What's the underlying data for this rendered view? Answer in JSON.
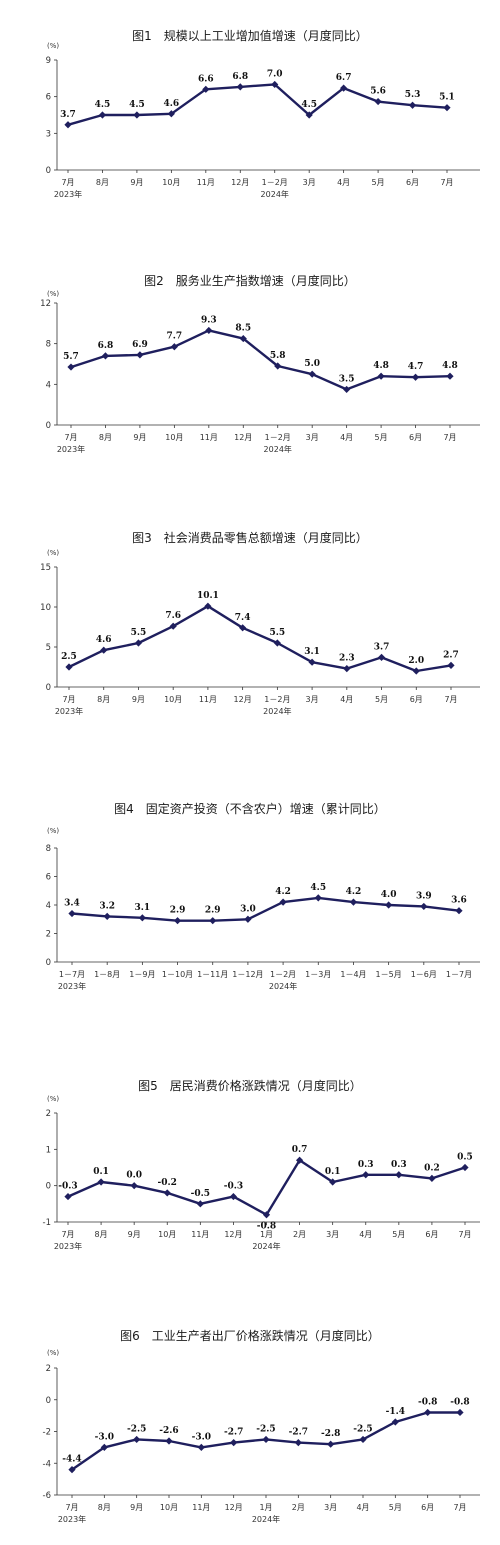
{
  "chart_data": [
    {
      "type": "line",
      "title": "图1　规模以上工业增加值增速（月度同比）",
      "unit": "(%)",
      "ylim": [
        0,
        9
      ],
      "yticks": [
        0,
        3,
        6,
        9
      ],
      "categories": [
        "7月",
        "8月",
        "9月",
        "10月",
        "11月",
        "12月",
        "1－2月",
        "3月",
        "4月",
        "5月",
        "6月",
        "7月"
      ],
      "year_labels": [
        {
          "at": 0,
          "text": "2023年"
        },
        {
          "at": 6,
          "text": "2024年"
        }
      ],
      "values": [
        3.7,
        4.5,
        4.5,
        4.6,
        6.6,
        6.8,
        7.0,
        4.5,
        6.7,
        5.6,
        5.3,
        5.1
      ],
      "labels": [
        "3.7",
        "4.5",
        "4.5",
        "4.6",
        "6.6",
        "6.8",
        "7.0",
        "4.5",
        "6.7",
        "5.6",
        "5.3",
        "5.1"
      ]
    },
    {
      "type": "line",
      "title": "图2　服务业生产指数增速（月度同比）",
      "unit": "(%)",
      "ylim": [
        0,
        12
      ],
      "yticks": [
        0,
        4,
        8,
        12
      ],
      "categories": [
        "7月",
        "8月",
        "9月",
        "10月",
        "11月",
        "12月",
        "1－2月",
        "3月",
        "4月",
        "5月",
        "6月",
        "7月"
      ],
      "year_labels": [
        {
          "at": 0,
          "text": "2023年"
        },
        {
          "at": 6,
          "text": "2024年"
        }
      ],
      "values": [
        5.7,
        6.8,
        6.9,
        7.7,
        9.3,
        8.5,
        5.8,
        5.0,
        3.5,
        4.8,
        4.7,
        4.8
      ],
      "labels": [
        "5.7",
        "6.8",
        "6.9",
        "7.7",
        "9.3",
        "8.5",
        "5.8",
        "5.0",
        "3.5",
        "4.8",
        "4.7",
        "4.8"
      ]
    },
    {
      "type": "line",
      "title": "图3　社会消费品零售总额增速（月度同比）",
      "unit": "(%)",
      "ylim": [
        0,
        15
      ],
      "yticks": [
        0,
        5,
        10,
        15
      ],
      "categories": [
        "7月",
        "8月",
        "9月",
        "10月",
        "11月",
        "12月",
        "1－2月",
        "3月",
        "4月",
        "5月",
        "6月",
        "7月"
      ],
      "year_labels": [
        {
          "at": 0,
          "text": "2023年"
        },
        {
          "at": 6,
          "text": "2024年"
        }
      ],
      "values": [
        2.5,
        4.6,
        5.5,
        7.6,
        10.1,
        7.4,
        5.5,
        3.1,
        2.3,
        3.7,
        2.0,
        2.7
      ],
      "labels": [
        "2.5",
        "4.6",
        "5.5",
        "7.6",
        "10.1",
        "7.4",
        "5.5",
        "3.1",
        "2.3",
        "3.7",
        "2.0",
        "2.7"
      ]
    },
    {
      "type": "line",
      "title": "图4　固定资产投资（不含农户）增速（累计同比）",
      "unit": "(%)",
      "ylim": [
        0,
        8
      ],
      "yticks": [
        0,
        2,
        4,
        6,
        8
      ],
      "categories": [
        "1－7月",
        "1－8月",
        "1－9月",
        "1－10月",
        "1－11月",
        "1－12月",
        "1－2月",
        "1－3月",
        "1－4月",
        "1－5月",
        "1－6月",
        "1－7月"
      ],
      "year_labels": [
        {
          "at": 0,
          "text": "2023年"
        },
        {
          "at": 6,
          "text": "2024年"
        }
      ],
      "values": [
        3.4,
        3.2,
        3.1,
        2.9,
        2.9,
        3.0,
        4.2,
        4.5,
        4.2,
        4.0,
        3.9,
        3.6
      ],
      "labels": [
        "3.4",
        "3.2",
        "3.1",
        "2.9",
        "2.9",
        "3.0",
        "4.2",
        "4.5",
        "4.2",
        "4.0",
        "3.9",
        "3.6"
      ]
    },
    {
      "type": "line",
      "title": "图5　居民消费价格涨跌情况（月度同比）",
      "unit": "(%)",
      "ylim": [
        -1,
        2
      ],
      "yticks": [
        -1,
        0,
        1,
        2
      ],
      "categories": [
        "7月",
        "8月",
        "9月",
        "10月",
        "11月",
        "12月",
        "1月",
        "2月",
        "3月",
        "4月",
        "5月",
        "6月",
        "7月"
      ],
      "year_labels": [
        {
          "at": 0,
          "text": "2023年"
        },
        {
          "at": 6,
          "text": "2024年"
        }
      ],
      "values": [
        -0.3,
        0.1,
        0.0,
        -0.2,
        -0.5,
        -0.3,
        -0.8,
        0.7,
        0.1,
        0.3,
        0.3,
        0.2,
        0.5
      ],
      "labels": [
        "-0.3",
        "0.1",
        "0.0",
        "-0.2",
        "-0.5",
        "-0.3",
        "-0.8",
        "0.7",
        "0.1",
        "0.3",
        "0.3",
        "0.2",
        "0.5"
      ]
    },
    {
      "type": "line",
      "title": "图6　工业生产者出厂价格涨跌情况（月度同比）",
      "unit": "(%)",
      "ylim": [
        -6,
        2
      ],
      "yticks": [
        -6,
        -4,
        -2,
        0,
        2
      ],
      "categories": [
        "7月",
        "8月",
        "9月",
        "10月",
        "11月",
        "12月",
        "1月",
        "2月",
        "3月",
        "4月",
        "5月",
        "6月",
        "7月"
      ],
      "year_labels": [
        {
          "at": 0,
          "text": "2023年"
        },
        {
          "at": 6,
          "text": "2024年"
        }
      ],
      "values": [
        -4.4,
        -3.0,
        -2.5,
        -2.6,
        -3.0,
        -2.7,
        -2.5,
        -2.7,
        -2.8,
        -2.5,
        -1.4,
        -0.8,
        -0.8
      ],
      "labels": [
        "-4.4",
        "-3.0",
        "-2.5",
        "-2.6",
        "-3.0",
        "-2.7",
        "-2.5",
        "-2.7",
        "-2.8",
        "-2.5",
        "-1.4",
        "-0.8",
        "-0.8"
      ]
    }
  ]
}
